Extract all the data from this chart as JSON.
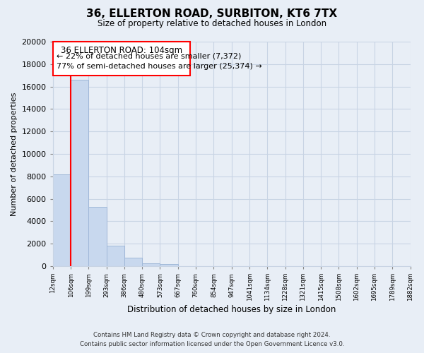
{
  "title": "36, ELLERTON ROAD, SURBITON, KT6 7TX",
  "subtitle": "Size of property relative to detached houses in London",
  "xlabel": "Distribution of detached houses by size in London",
  "ylabel": "Number of detached properties",
  "bar_edges": [
    12,
    106,
    199,
    293,
    386,
    480,
    573,
    667,
    760,
    854,
    947,
    1041,
    1134,
    1228,
    1321,
    1415,
    1508,
    1602,
    1695,
    1789,
    1882
  ],
  "bar_heights": [
    8200,
    16600,
    5300,
    1850,
    750,
    280,
    200,
    0,
    0,
    0,
    0,
    0,
    0,
    0,
    0,
    0,
    0,
    0,
    0,
    0
  ],
  "bar_color": "#c8d8ee",
  "bar_edge_color": "#a0b8d8",
  "property_line_x": 106,
  "ylim": [
    0,
    20000
  ],
  "yticks": [
    0,
    2000,
    4000,
    6000,
    8000,
    10000,
    12000,
    14000,
    16000,
    18000,
    20000
  ],
  "ann_line1": "36 ELLERTON ROAD: 104sqm",
  "ann_line2": "← 22% of detached houses are smaller (7,372)",
  "ann_line3": "77% of semi-detached houses are larger (25,374) →",
  "footer_line1": "Contains HM Land Registry data © Crown copyright and database right 2024.",
  "footer_line2": "Contains public sector information licensed under the Open Government Licence v3.0.",
  "grid_color": "#c8d4e4",
  "background_color": "#e8eef6",
  "plot_bg_color": "#e8eef6",
  "tick_labels": [
    "12sqm",
    "106sqm",
    "199sqm",
    "293sqm",
    "386sqm",
    "480sqm",
    "573sqm",
    "667sqm",
    "760sqm",
    "854sqm",
    "947sqm",
    "1041sqm",
    "1134sqm",
    "1228sqm",
    "1321sqm",
    "1415sqm",
    "1508sqm",
    "1602sqm",
    "1695sqm",
    "1789sqm",
    "1882sqm"
  ]
}
